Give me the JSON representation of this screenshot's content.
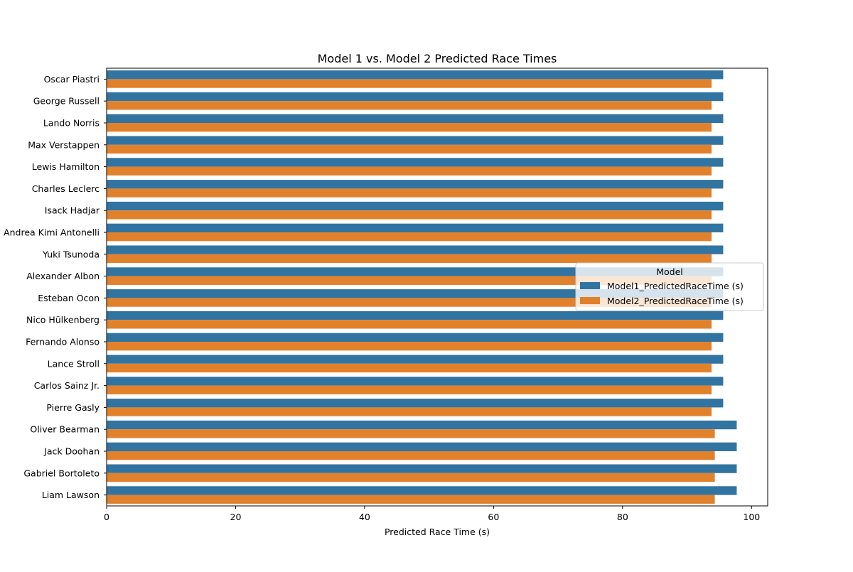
{
  "chart_data": {
    "type": "bar",
    "orientation": "horizontal",
    "title": "Model 1 vs. Model 2 Predicted Race Times",
    "xlabel": "Predicted Race Time (s)",
    "ylabel": "",
    "xlim": [
      0,
      102.5
    ],
    "xticks": [
      0,
      20,
      40,
      60,
      80,
      100
    ],
    "grid": false,
    "legend": {
      "title": "Model",
      "placement": "center-right"
    },
    "categories": [
      "Oscar Piastri",
      "George Russell",
      "Lando Norris",
      "Max Verstappen",
      "Lewis Hamilton",
      "Charles Leclerc",
      "Isack Hadjar",
      "Andrea Kimi Antonelli",
      "Yuki Tsunoda",
      "Alexander Albon",
      "Esteban Ocon",
      "Nico Hülkenberg",
      "Fernando Alonso",
      "Lance Stroll",
      "Carlos Sainz Jr.",
      "Pierre Gasly",
      "Oliver Bearman",
      "Jack Doohan",
      "Gabriel Bortoleto",
      "Liam Lawson"
    ],
    "series": [
      {
        "name": "Model1_PredictedRaceTime (s)",
        "color": "#3274a1",
        "values": [
          95.6,
          95.6,
          95.6,
          95.6,
          95.6,
          95.6,
          95.6,
          95.6,
          95.6,
          95.6,
          95.6,
          95.6,
          95.6,
          95.6,
          95.6,
          95.6,
          97.7,
          97.7,
          97.7,
          97.7
        ]
      },
      {
        "name": "Model2_PredictedRaceTime (s)",
        "color": "#e1812c",
        "values": [
          93.8,
          93.8,
          93.8,
          93.8,
          93.8,
          93.8,
          93.8,
          93.8,
          93.8,
          93.8,
          93.8,
          93.8,
          93.8,
          93.8,
          93.8,
          93.8,
          94.3,
          94.3,
          94.3,
          94.3
        ]
      }
    ]
  }
}
